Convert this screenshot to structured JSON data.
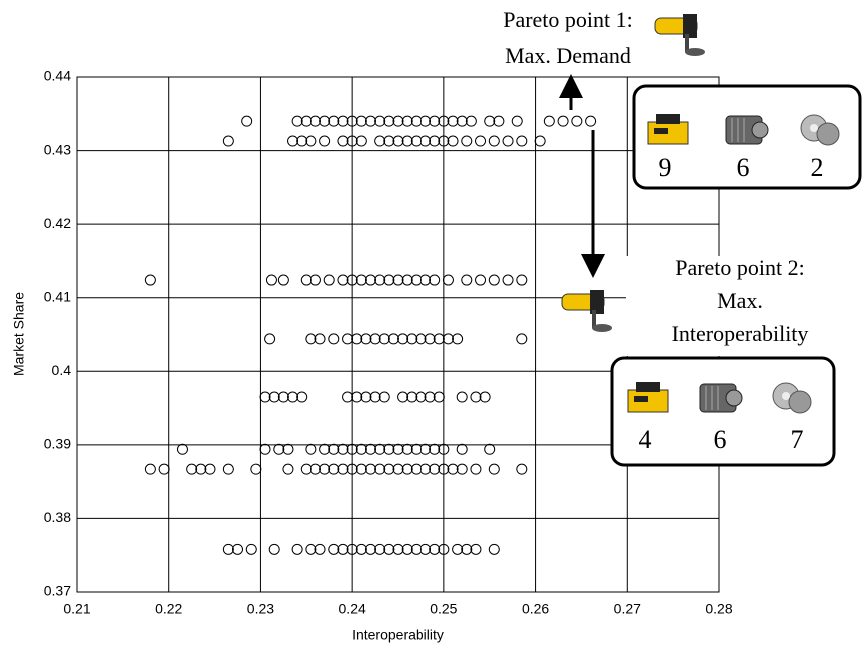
{
  "chart_data": {
    "type": "scatter",
    "x_label": "Interoperability",
    "y_label": "Market Share",
    "xlim": [
      0.21,
      0.28
    ],
    "xticks": [
      0.21,
      0.22,
      0.23,
      0.24,
      0.25,
      0.26,
      0.27,
      0.28
    ],
    "ylim": [
      0.37,
      0.44
    ],
    "yticks": [
      0.37,
      0.38,
      0.39,
      0.4,
      0.41,
      0.42,
      0.43,
      0.44
    ],
    "grid": true,
    "color": "#000000",
    "series": [
      {
        "x": [
          0.2285,
          0.234,
          0.235,
          0.236,
          0.237,
          0.238,
          0.239,
          0.24,
          0.241,
          0.242,
          0.243,
          0.244,
          0.245,
          0.246,
          0.247,
          0.248,
          0.249,
          0.25,
          0.251,
          0.252,
          0.253,
          0.255,
          0.256,
          0.258,
          0.2615,
          0.263,
          0.2645,
          0.266
        ],
        "values": [
          0.434,
          0.434,
          0.434,
          0.434,
          0.434,
          0.434,
          0.434,
          0.434,
          0.434,
          0.434,
          0.434,
          0.434,
          0.434,
          0.434,
          0.434,
          0.434,
          0.434,
          0.434,
          0.434,
          0.434,
          0.434,
          0.434,
          0.434,
          0.434,
          0.434,
          0.434,
          0.434,
          0.434
        ]
      },
      {
        "x": [
          0.2265,
          0.2335,
          0.2345,
          0.2355,
          0.237,
          0.239,
          0.24,
          0.241,
          0.243,
          0.244,
          0.245,
          0.246,
          0.247,
          0.248,
          0.249,
          0.25,
          0.251,
          0.2525,
          0.254,
          0.2555,
          0.257,
          0.2585,
          0.2605
        ],
        "values": [
          0.4313,
          0.4313,
          0.4313,
          0.4313,
          0.4313,
          0.4313,
          0.4313,
          0.4313,
          0.4313,
          0.4313,
          0.4313,
          0.4313,
          0.4313,
          0.4313,
          0.4313,
          0.4313,
          0.4313,
          0.4313,
          0.4313,
          0.4313,
          0.4313,
          0.4313,
          0.4313
        ]
      },
      {
        "x": [
          0.218,
          0.2312,
          0.2325,
          0.235,
          0.236,
          0.2375,
          0.239,
          0.24,
          0.241,
          0.242,
          0.243,
          0.244,
          0.245,
          0.246,
          0.247,
          0.248,
          0.249,
          0.2505,
          0.2525,
          0.254,
          0.2555,
          0.257,
          0.2585
        ],
        "values": [
          0.4124,
          0.4124,
          0.4124,
          0.4124,
          0.4124,
          0.4124,
          0.4124,
          0.4124,
          0.4124,
          0.4124,
          0.4124,
          0.4124,
          0.4124,
          0.4124,
          0.4124,
          0.4124,
          0.4124,
          0.4124,
          0.4124,
          0.4124,
          0.4124,
          0.4124,
          0.4124
        ]
      },
      {
        "x": [
          0.231,
          0.2355,
          0.2365,
          0.238,
          0.2395,
          0.2405,
          0.2415,
          0.2425,
          0.2435,
          0.2445,
          0.2455,
          0.2465,
          0.2475,
          0.2485,
          0.2495,
          0.2505,
          0.2515,
          0.2585
        ],
        "values": [
          0.4044,
          0.4044,
          0.4044,
          0.4044,
          0.4044,
          0.4044,
          0.4044,
          0.4044,
          0.4044,
          0.4044,
          0.4044,
          0.4044,
          0.4044,
          0.4044,
          0.4044,
          0.4044,
          0.4044,
          0.4044
        ]
      },
      {
        "x": [
          0.2305,
          0.2315,
          0.2325,
          0.2335,
          0.2345,
          0.2395,
          0.2405,
          0.2415,
          0.2425,
          0.2435,
          0.2455,
          0.2465,
          0.2475,
          0.2485,
          0.2495,
          0.252,
          0.2535,
          0.2545
        ],
        "values": [
          0.3965,
          0.3965,
          0.3965,
          0.3965,
          0.3965,
          0.3965,
          0.3965,
          0.3965,
          0.3965,
          0.3965,
          0.3965,
          0.3965,
          0.3965,
          0.3965,
          0.3965,
          0.3965,
          0.3965,
          0.3965
        ]
      },
      {
        "x": [
          0.2215,
          0.2305,
          0.232,
          0.233,
          0.2355,
          0.237,
          0.238,
          0.239,
          0.24,
          0.241,
          0.242,
          0.243,
          0.244,
          0.245,
          0.246,
          0.247,
          0.248,
          0.249,
          0.25,
          0.252,
          0.255
        ],
        "values": [
          0.3894,
          0.3894,
          0.3894,
          0.3894,
          0.3894,
          0.3894,
          0.3894,
          0.3894,
          0.3894,
          0.3894,
          0.3894,
          0.3894,
          0.3894,
          0.3894,
          0.3894,
          0.3894,
          0.3894,
          0.3894,
          0.3894,
          0.3894,
          0.3894
        ]
      },
      {
        "x": [
          0.218,
          0.2195,
          0.2225,
          0.2235,
          0.2245,
          0.2265,
          0.2295,
          0.233,
          0.235,
          0.236,
          0.237,
          0.238,
          0.239,
          0.24,
          0.241,
          0.242,
          0.243,
          0.244,
          0.245,
          0.246,
          0.247,
          0.248,
          0.249,
          0.25,
          0.251,
          0.252,
          0.2535,
          0.2555,
          0.2585
        ],
        "values": [
          0.3867,
          0.3867,
          0.3867,
          0.3867,
          0.3867,
          0.3867,
          0.3867,
          0.3867,
          0.3867,
          0.3867,
          0.3867,
          0.3867,
          0.3867,
          0.3867,
          0.3867,
          0.3867,
          0.3867,
          0.3867,
          0.3867,
          0.3867,
          0.3867,
          0.3867,
          0.3867,
          0.3867,
          0.3867,
          0.3867,
          0.3867,
          0.3867,
          0.3867
        ]
      },
      {
        "x": [
          0.2265,
          0.2275,
          0.229,
          0.2315,
          0.234,
          0.2355,
          0.2365,
          0.238,
          0.239,
          0.24,
          0.241,
          0.242,
          0.243,
          0.244,
          0.245,
          0.246,
          0.247,
          0.248,
          0.249,
          0.25,
          0.2515,
          0.2525,
          0.2535,
          0.2555
        ],
        "values": [
          0.3758,
          0.3758,
          0.3758,
          0.3758,
          0.3758,
          0.3758,
          0.3758,
          0.3758,
          0.3758,
          0.3758,
          0.3758,
          0.3758,
          0.3758,
          0.3758,
          0.3758,
          0.3758,
          0.3758,
          0.3758,
          0.3758,
          0.3758,
          0.3758,
          0.3758,
          0.3758,
          0.3758
        ]
      }
    ],
    "annotations": {
      "pareto_1": {
        "title": "Pareto point 1:",
        "subtitle": "Max. Demand",
        "counts": [
          9,
          6,
          2
        ]
      },
      "pareto_2": {
        "title": "Pareto point 2:",
        "lines": [
          "Max.",
          "Interoperability"
        ],
        "counts": [
          4,
          6,
          7
        ]
      }
    }
  }
}
